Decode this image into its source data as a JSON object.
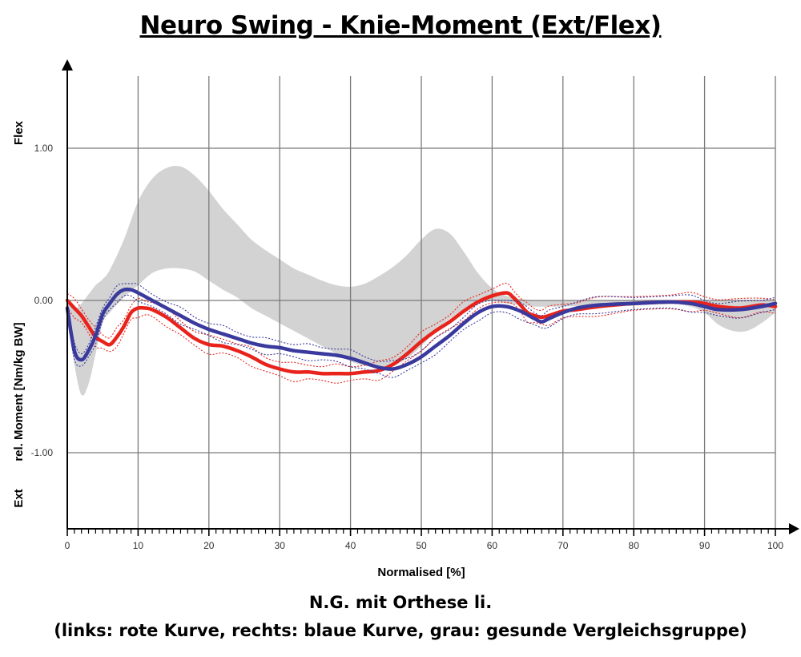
{
  "title": "Neuro Swing - Knie-Moment (Ext/Flex)",
  "caption_line1": "N.G. mit Orthese li.",
  "caption_line2": "(links: rote Kurve, rechts: blaue Kurve, grau: gesunde Vergleichsgruppe)",
  "chart_data": {
    "type": "line",
    "title": "Neuro Swing - Knie-Moment (Ext/Flex)",
    "xlabel": "Normalised [%]",
    "ylabel": "rel. Moment [Nm/kg BW]",
    "y_top_label": "Flex",
    "y_bottom_label": "Ext",
    "xlim": [
      0,
      100
    ],
    "ylim": [
      -1.5,
      1.5
    ],
    "x_ticks": [
      0,
      10,
      20,
      30,
      40,
      50,
      60,
      70,
      80,
      90,
      100
    ],
    "x_tick_labels": [
      "0",
      "10",
      "20",
      "30",
      "40",
      "50",
      "60",
      "70",
      "80",
      "90",
      "100"
    ],
    "y_ticks": [
      1.0,
      0.0,
      -1.0
    ],
    "y_tick_labels": [
      "1.00",
      "0.00",
      "-1.00"
    ],
    "grid": true,
    "colors": {
      "left": "#e8231c",
      "right": "#3a3a9e",
      "norm": "#d3d3d3",
      "grid": "#7a7a7a"
    },
    "series": [
      {
        "name": "links (rote Kurve)",
        "color": "#e8231c",
        "x": [
          0,
          1,
          2,
          3,
          4,
          5,
          6,
          7,
          8,
          9,
          10,
          11,
          12,
          14,
          16,
          18,
          20,
          22,
          24,
          26,
          28,
          30,
          32,
          34,
          36,
          38,
          40,
          42,
          44,
          46,
          48,
          50,
          52,
          54,
          56,
          58,
          60,
          62,
          63,
          64,
          65,
          66,
          67,
          68,
          70,
          72,
          75,
          80,
          85,
          88,
          90,
          92,
          95,
          98,
          100
        ],
        "y": [
          0.0,
          -0.05,
          -0.1,
          -0.17,
          -0.24,
          -0.27,
          -0.29,
          -0.24,
          -0.17,
          -0.08,
          -0.05,
          -0.05,
          -0.06,
          -0.11,
          -0.18,
          -0.25,
          -0.29,
          -0.3,
          -0.33,
          -0.37,
          -0.42,
          -0.45,
          -0.47,
          -0.47,
          -0.48,
          -0.48,
          -0.48,
          -0.47,
          -0.46,
          -0.42,
          -0.35,
          -0.27,
          -0.2,
          -0.14,
          -0.07,
          -0.01,
          0.03,
          0.05,
          0.02,
          -0.03,
          -0.08,
          -0.1,
          -0.11,
          -0.1,
          -0.07,
          -0.06,
          -0.04,
          -0.02,
          -0.01,
          -0.01,
          -0.02,
          -0.04,
          -0.05,
          -0.03,
          -0.04
        ]
      },
      {
        "name": "rechts (blaue Kurve)",
        "color": "#3a3a9e",
        "x": [
          0,
          1,
          2,
          3,
          4,
          5,
          6,
          7,
          8,
          9,
          10,
          12,
          14,
          16,
          18,
          20,
          22,
          24,
          26,
          28,
          30,
          32,
          34,
          36,
          38,
          40,
          42,
          44,
          46,
          48,
          50,
          52,
          54,
          56,
          58,
          60,
          62,
          64,
          66,
          67,
          68,
          70,
          72,
          75,
          80,
          85,
          88,
          90,
          92,
          95,
          98,
          100
        ],
        "y": [
          -0.05,
          -0.33,
          -0.39,
          -0.33,
          -0.23,
          -0.09,
          -0.02,
          0.04,
          0.07,
          0.07,
          0.05,
          0.0,
          -0.05,
          -0.1,
          -0.15,
          -0.19,
          -0.22,
          -0.25,
          -0.28,
          -0.3,
          -0.31,
          -0.33,
          -0.34,
          -0.35,
          -0.36,
          -0.38,
          -0.41,
          -0.44,
          -0.45,
          -0.42,
          -0.37,
          -0.3,
          -0.23,
          -0.15,
          -0.08,
          -0.04,
          -0.04,
          -0.07,
          -0.12,
          -0.14,
          -0.12,
          -0.08,
          -0.05,
          -0.03,
          -0.02,
          -0.01,
          -0.02,
          -0.04,
          -0.06,
          -0.06,
          -0.04,
          -0.02
        ]
      },
      {
        "name": "grau: gesunde Vergleichsgruppe (Band)",
        "color": "#d3d3d3",
        "x": [
          0,
          1,
          2,
          3,
          4,
          5,
          6,
          8,
          10,
          12,
          14,
          16,
          18,
          20,
          22,
          24,
          26,
          28,
          30,
          32,
          34,
          36,
          38,
          40,
          42,
          44,
          46,
          48,
          50,
          52,
          54,
          56,
          58,
          60,
          62,
          64,
          66,
          68,
          70,
          75,
          80,
          85,
          88,
          90,
          92,
          94,
          96,
          98,
          100
        ],
        "upper": [
          0.02,
          -0.05,
          -0.02,
          0.04,
          0.1,
          0.14,
          0.2,
          0.4,
          0.65,
          0.8,
          0.87,
          0.88,
          0.82,
          0.72,
          0.6,
          0.5,
          0.4,
          0.33,
          0.27,
          0.21,
          0.17,
          0.13,
          0.1,
          0.09,
          0.11,
          0.16,
          0.22,
          0.3,
          0.4,
          0.47,
          0.44,
          0.32,
          0.18,
          0.08,
          0.03,
          0.01,
          0.0,
          0.0,
          0.0,
          0.0,
          0.0,
          0.0,
          0.0,
          0.0,
          0.0,
          0.0,
          0.0,
          0.0,
          0.0
        ],
        "lower": [
          -0.1,
          -0.42,
          -0.62,
          -0.55,
          -0.35,
          -0.15,
          -0.08,
          0.02,
          0.1,
          0.18,
          0.21,
          0.21,
          0.19,
          0.13,
          0.07,
          0.02,
          -0.05,
          -0.1,
          -0.15,
          -0.2,
          -0.25,
          -0.3,
          -0.35,
          -0.4,
          -0.43,
          -0.44,
          -0.43,
          -0.38,
          -0.3,
          -0.2,
          -0.12,
          -0.06,
          -0.02,
          0.0,
          -0.02,
          -0.03,
          -0.04,
          -0.04,
          -0.04,
          -0.03,
          -0.02,
          -0.02,
          -0.04,
          -0.08,
          -0.16,
          -0.2,
          -0.2,
          -0.15,
          -0.08
        ]
      }
    ]
  }
}
